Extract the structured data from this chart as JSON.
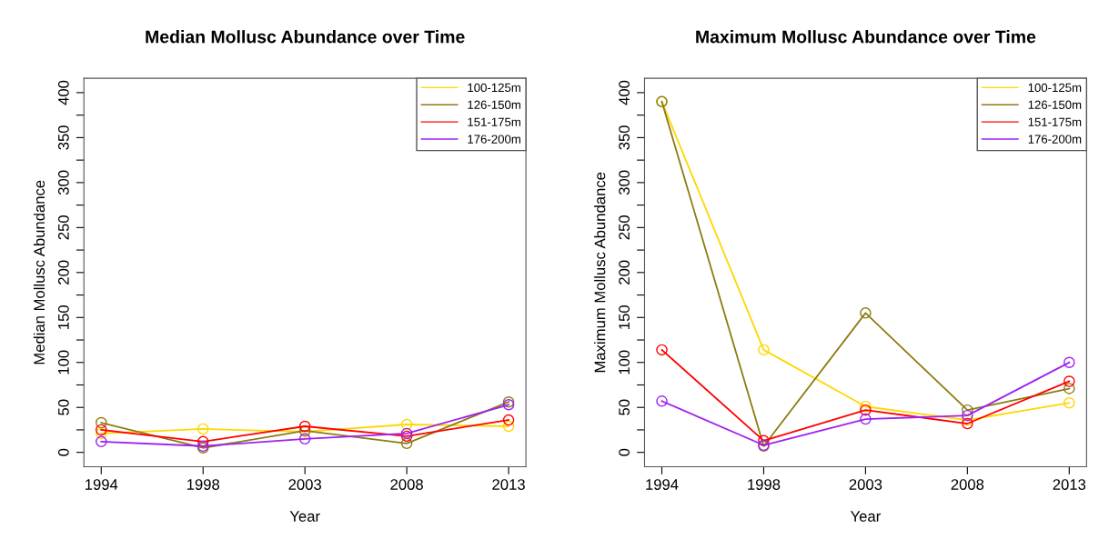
{
  "chart_data": [
    {
      "type": "line",
      "title": "Median Mollusc Abundance over Time",
      "xlabel": "Year",
      "ylabel": "Median Mollusc Abundance",
      "categories": [
        "1994",
        "1998",
        "2003",
        "2008",
        "2013"
      ],
      "ylim": [
        -16,
        416
      ],
      "yticks": [
        0,
        {
          "value": 25,
          "label": null
        },
        50,
        {
          "value": 75,
          "label": null
        },
        100,
        {
          "value": 125,
          "label": null
        },
        150,
        {
          "value": 175,
          "label": null
        },
        200,
        {
          "value": 225,
          "label": null
        },
        250,
        {
          "value": 275,
          "label": null
        },
        300,
        {
          "value": 325,
          "label": null
        },
        350,
        {
          "value": 375,
          "label": null
        },
        400
      ],
      "marker": "circle",
      "legend": "top right",
      "grid": false,
      "series": [
        {
          "name": "100-125m",
          "color": "#ffd700",
          "values": [
            21,
            26,
            23,
            31,
            29
          ]
        },
        {
          "name": "126-150m",
          "color": "#8b7d10",
          "values": [
            33,
            5,
            24,
            10,
            56
          ]
        },
        {
          "name": "151-175m",
          "color": "#ff0000",
          "values": [
            25,
            12,
            29,
            18,
            36
          ]
        },
        {
          "name": "176-200m",
          "color": "#a020f0",
          "values": [
            12,
            7,
            15,
            21,
            53
          ]
        }
      ]
    },
    {
      "type": "line",
      "title": "Maximum Mollusc Abundance over Time",
      "xlabel": "Year",
      "ylabel": "Maximum Mollusc Abundance",
      "categories": [
        "1994",
        "1998",
        "2003",
        "2008",
        "2013"
      ],
      "ylim": [
        -16,
        416
      ],
      "yticks": [
        0,
        {
          "value": 25,
          "label": null
        },
        50,
        {
          "value": 75,
          "label": null
        },
        100,
        {
          "value": 125,
          "label": null
        },
        150,
        {
          "value": 175,
          "label": null
        },
        200,
        {
          "value": 225,
          "label": null
        },
        250,
        {
          "value": 275,
          "label": null
        },
        300,
        {
          "value": 325,
          "label": null
        },
        350,
        {
          "value": 375,
          "label": null
        },
        400
      ],
      "marker": "circle",
      "legend": "top right",
      "grid": false,
      "series": [
        {
          "name": "100-125m",
          "color": "#ffd700",
          "values": [
            390,
            114,
            51,
            36,
            55
          ]
        },
        {
          "name": "126-150m",
          "color": "#8b7d10",
          "values": [
            390,
            7,
            155,
            47,
            71
          ]
        },
        {
          "name": "151-175m",
          "color": "#ff0000",
          "values": [
            114,
            13,
            47,
            32,
            79
          ]
        },
        {
          "name": "176-200m",
          "color": "#a020f0",
          "values": [
            57,
            8,
            37,
            41,
            100
          ]
        }
      ]
    }
  ]
}
